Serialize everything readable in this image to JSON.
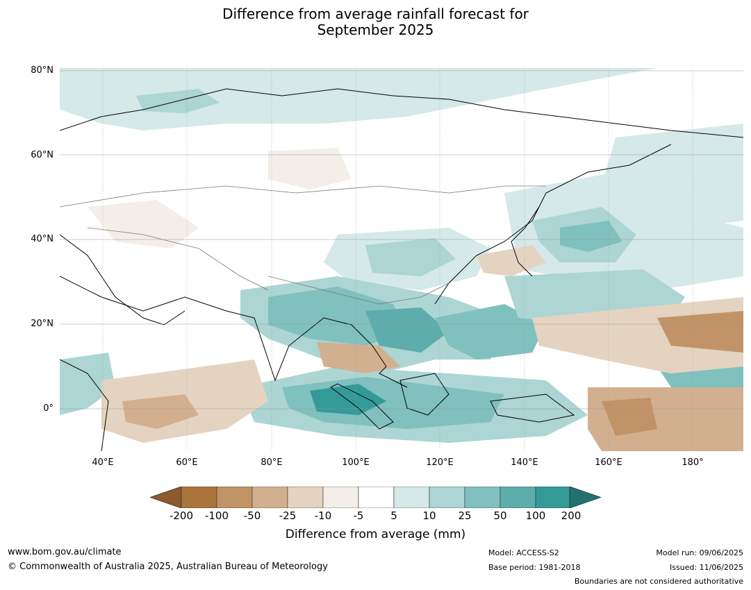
{
  "title": {
    "line1": "Difference from average rainfall forecast for",
    "line2": "September 2025"
  },
  "map": {
    "lat_labels": [
      "80°N",
      "60°N",
      "40°N",
      "20°N",
      "0°"
    ],
    "lon_labels": [
      "40°E",
      "60°E",
      "80°E",
      "100°E",
      "120°E",
      "140°E",
      "160°E",
      "180°"
    ]
  },
  "colorbar": {
    "title": "Difference from average (mm)",
    "ticks": [
      "-200",
      "-100",
      "-50",
      "-25",
      "-10",
      "-5",
      "5",
      "10",
      "25",
      "50",
      "100",
      "200"
    ],
    "colors": {
      "below_min": "#8c5a2b",
      "bins": [
        "#ab743d",
        "#c19366",
        "#d2b08f",
        "#e5d3c1",
        "#f3eee8",
        "#ffffff",
        "#d4e9e8",
        "#acd5d3",
        "#80c0be",
        "#5cadab",
        "#339a98"
      ],
      "above_max": "#1f7270"
    }
  },
  "footer": {
    "website": "www.bom.gov.au/climate",
    "copyright": "© Commonwealth of Australia 2025, Australian Bureau of Meteorology",
    "model": "Model: ACCESS-S2",
    "base_period": "Base period: 1981-2018",
    "model_run": "Model run: 09/06/2025",
    "issued": "Issued: 11/06/2025",
    "disclaimer": "Boundaries are not considered authoritative"
  }
}
